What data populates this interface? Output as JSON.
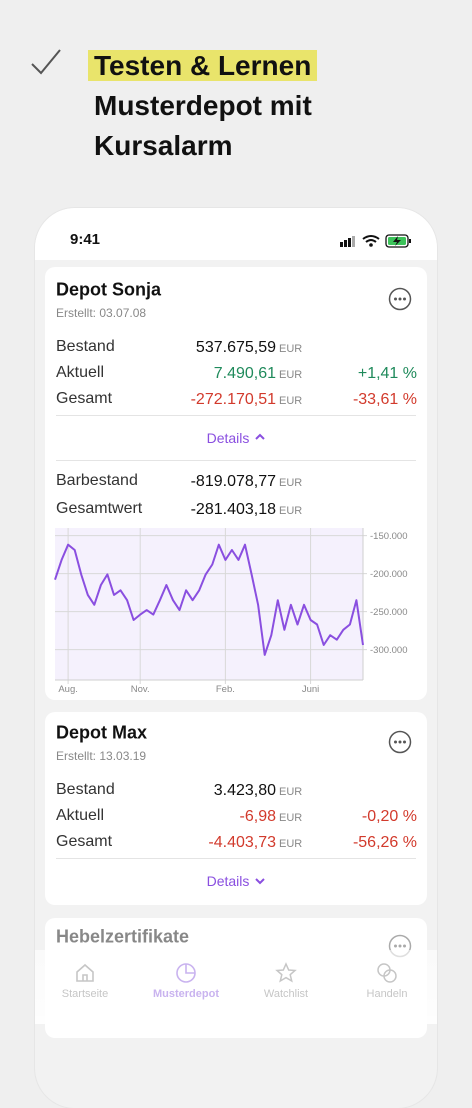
{
  "header": {
    "lines": [
      "Testen & Lernen",
      "Musterdepot mit",
      "Kursalarm"
    ]
  },
  "status_bar": {
    "time": "9:41"
  },
  "depots": [
    {
      "name": "Depot Sonja",
      "created": "Erstellt: 03.07.08",
      "rows": [
        {
          "label": "Bestand",
          "value": "537.675,59",
          "currency": "EUR"
        },
        {
          "label": "Aktuell",
          "value": "7.490,61",
          "currency": "EUR",
          "percent": "+1,41 %"
        },
        {
          "label": "Gesamt",
          "value": "-272.170,51",
          "currency": "EUR",
          "percent": "-33,61 %"
        }
      ],
      "details": "Details",
      "cash_rows": [
        {
          "label": "Barbestand",
          "value": "-819.078,77",
          "currency": "EUR"
        },
        {
          "label": "Gesamtwert",
          "value": "-281.403,18",
          "currency": "EUR"
        }
      ]
    },
    {
      "name": "Depot Max",
      "created": "Erstellt: 13.03.19",
      "rows": [
        {
          "label": "Bestand",
          "value": "3.423,80",
          "currency": "EUR"
        },
        {
          "label": "Aktuell",
          "value": "-6,98",
          "currency": "EUR",
          "percent": "-0,20 %"
        },
        {
          "label": "Gesamt",
          "value": "-4.403,73",
          "currency": "EUR",
          "percent": "-56,26 %"
        }
      ],
      "details": "Details"
    },
    {
      "name": "Hebelzertifikate"
    }
  ],
  "chart_data": {
    "type": "line",
    "color": "#8a4fe0",
    "categories": [
      null,
      null,
      "Aug.",
      null,
      null,
      null,
      null,
      null,
      null,
      null,
      null,
      null,
      null,
      "Nov.",
      null,
      null,
      null,
      null,
      null,
      null,
      null,
      null,
      null,
      null,
      null,
      null,
      "Feb.",
      null,
      null,
      null,
      null,
      null,
      null,
      null,
      null,
      null,
      null,
      null,
      null,
      "Juni",
      null,
      null,
      null,
      null,
      null,
      null,
      null,
      null
    ],
    "values": [
      -208000,
      -182000,
      -162000,
      -169000,
      -201000,
      -228000,
      -241000,
      -215000,
      -201000,
      -228000,
      -222000,
      -235000,
      -261000,
      -254000,
      -248000,
      -254000,
      -235000,
      -215000,
      -235000,
      -248000,
      -222000,
      -235000,
      -222000,
      -201000,
      -188000,
      -162000,
      -182000,
      -169000,
      -182000,
      -162000,
      -201000,
      -241000,
      -307000,
      -281000,
      -235000,
      -274000,
      -241000,
      -267000,
      -241000,
      -261000,
      -267000,
      -294000,
      -281000,
      -287000,
      -274000,
      -267000,
      -235000,
      -294000
    ],
    "ylim": [
      -340000,
      -140000
    ],
    "yticks": [
      {
        "value": -150000,
        "label": "-150.000"
      },
      {
        "value": -200000,
        "label": "-200.000"
      },
      {
        "value": -250000,
        "label": "-250.000"
      },
      {
        "value": -300000,
        "label": "-300.000"
      }
    ],
    "grid": true
  },
  "tab_bar": {
    "tabs": [
      "Startseite",
      "Musterdepot",
      "Watchlist",
      "Handeln"
    ],
    "active": "Musterdepot"
  }
}
